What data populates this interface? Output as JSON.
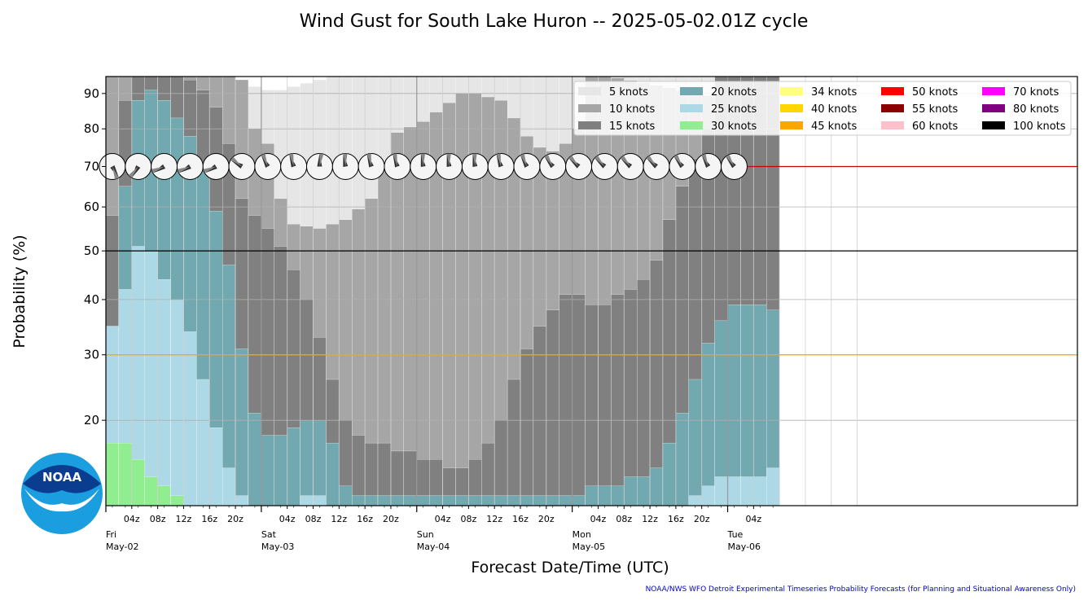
{
  "chart_data": {
    "type": "bar",
    "title": "Wind Gust for South Lake Huron -- 2025-05-02.01Z cycle",
    "xlabel": "Forecast Date/Time (UTC)",
    "ylabel": "Probability (%)",
    "y_scale": "sqrt",
    "ylim": [
      10,
      95
    ],
    "yticks": [
      20,
      30,
      40,
      50,
      60,
      70,
      80,
      90
    ],
    "grid": true,
    "legend_placement": "top-right",
    "x_start": "2025-05-02T01:00Z",
    "x_end": "2025-05-06T06:00Z",
    "x_step_hours": 2,
    "hour_tick_labels": [
      "04z",
      "08z",
      "12z",
      "16z",
      "20z"
    ],
    "day_labels": [
      {
        "dow": "Fri",
        "date": "May-02"
      },
      {
        "dow": "Sat",
        "date": "May-03"
      },
      {
        "dow": "Sun",
        "date": "May-04"
      },
      {
        "dow": "Mon",
        "date": "May-05"
      },
      {
        "dow": "Tue",
        "date": "May-06"
      }
    ],
    "last_hour_tick_label": "04z",
    "reference_lines": [
      {
        "value": 70,
        "color": "#cc0000"
      },
      {
        "value": 50,
        "color": "#000000"
      },
      {
        "value": 30,
        "color": "#ffa500"
      }
    ],
    "series": [
      {
        "name": "5 knots",
        "color": "#e6e6e6"
      },
      {
        "name": "10 knots",
        "color": "#a6a6a6"
      },
      {
        "name": "15 knots",
        "color": "#808080"
      },
      {
        "name": "20 knots",
        "color": "#72a8b0"
      },
      {
        "name": "25 knots",
        "color": "#add8e6"
      },
      {
        "name": "30 knots",
        "color": "#90ee90"
      },
      {
        "name": "34 knots",
        "color": "#ffff80"
      },
      {
        "name": "40 knots",
        "color": "#ffd700"
      },
      {
        "name": "45 knots",
        "color": "#ffa500"
      },
      {
        "name": "50 knots",
        "color": "#ff0000"
      },
      {
        "name": "55 knots",
        "color": "#8b0000"
      },
      {
        "name": "60 knots",
        "color": "#ffc0cb"
      },
      {
        "name": "70 knots",
        "color": "#ff00ff"
      },
      {
        "name": "80 knots",
        "color": "#800080"
      },
      {
        "name": "100 knots",
        "color": "#000000"
      }
    ],
    "anchors": {
      "10 knots": [
        [
          1,
          96
        ],
        [
          13,
          96
        ],
        [
          19,
          96
        ],
        [
          21,
          96
        ],
        [
          23,
          80
        ],
        [
          25,
          76
        ],
        [
          27,
          62
        ],
        [
          29,
          56
        ],
        [
          33,
          55
        ],
        [
          37,
          57
        ],
        [
          41,
          62
        ],
        [
          43,
          70
        ],
        [
          45,
          79
        ],
        [
          49,
          82
        ],
        [
          55,
          90
        ],
        [
          57,
          90
        ],
        [
          61,
          88
        ],
        [
          63,
          83
        ],
        [
          65,
          78
        ],
        [
          67,
          75
        ],
        [
          69,
          74
        ],
        [
          71,
          76
        ],
        [
          73,
          80
        ],
        [
          75,
          96
        ],
        [
          119,
          80
        ],
        [
          121,
          76
        ],
        [
          123,
          72
        ],
        [
          125,
          70
        ],
        [
          127,
          66
        ],
        [
          129,
          62
        ],
        [
          131,
          52
        ],
        [
          133,
          47
        ]
      ],
      "15 knots": [
        [
          1,
          58
        ],
        [
          3,
          88
        ],
        [
          5,
          96
        ],
        [
          7,
          96
        ],
        [
          9,
          96
        ],
        [
          11,
          96
        ],
        [
          13,
          94
        ],
        [
          15,
          91
        ],
        [
          17,
          86
        ],
        [
          19,
          76
        ],
        [
          21,
          62
        ],
        [
          23,
          58
        ],
        [
          25,
          55
        ],
        [
          27,
          51
        ],
        [
          29,
          46
        ],
        [
          31,
          40
        ],
        [
          33,
          33
        ],
        [
          35,
          26
        ],
        [
          37,
          20
        ],
        [
          39,
          18
        ],
        [
          41,
          17
        ],
        [
          43,
          17
        ],
        [
          45,
          16
        ],
        [
          47,
          16
        ],
        [
          49,
          15
        ],
        [
          51,
          15
        ],
        [
          53,
          14
        ],
        [
          55,
          14
        ],
        [
          57,
          15
        ],
        [
          59,
          17
        ],
        [
          61,
          20
        ],
        [
          63,
          26
        ],
        [
          65,
          31
        ],
        [
          67,
          35
        ],
        [
          69,
          38
        ],
        [
          71,
          41
        ],
        [
          73,
          41
        ],
        [
          75,
          39
        ],
        [
          77,
          39
        ],
        [
          79,
          41
        ],
        [
          81,
          42
        ],
        [
          83,
          44
        ],
        [
          85,
          48
        ],
        [
          87,
          57
        ],
        [
          89,
          65
        ],
        [
          91,
          72
        ],
        [
          93,
          80
        ],
        [
          95,
          96
        ],
        [
          109,
          96
        ],
        [
          111,
          84
        ],
        [
          113,
          73
        ],
        [
          115,
          70
        ],
        [
          117,
          66
        ],
        [
          119,
          63
        ],
        [
          121,
          64
        ],
        [
          123,
          66
        ],
        [
          125,
          68
        ],
        [
          127,
          65
        ],
        [
          129,
          60
        ],
        [
          131,
          55
        ],
        [
          133,
          51
        ],
        [
          135,
          49
        ],
        [
          137,
          44
        ],
        [
          139,
          41
        ],
        [
          141,
          40
        ],
        [
          143,
          36
        ],
        [
          145,
          31
        ],
        [
          147,
          27
        ],
        [
          149,
          21
        ],
        [
          151,
          17
        ],
        [
          153,
          14
        ]
      ],
      "20 knots": [
        [
          1,
          35
        ],
        [
          3,
          65
        ],
        [
          5,
          88
        ],
        [
          7,
          91
        ],
        [
          9,
          88
        ],
        [
          11,
          83
        ],
        [
          13,
          78
        ],
        [
          15,
          70
        ],
        [
          17,
          59
        ],
        [
          19,
          47
        ],
        [
          21,
          31
        ],
        [
          23,
          21
        ],
        [
          25,
          18
        ],
        [
          27,
          18
        ],
        [
          29,
          19
        ],
        [
          31,
          20
        ],
        [
          33,
          20
        ],
        [
          35,
          17
        ],
        [
          37,
          12
        ],
        [
          39,
          11
        ],
        [
          41,
          11
        ],
        [
          63,
          11
        ],
        [
          65,
          11
        ],
        [
          67,
          11
        ],
        [
          69,
          11
        ],
        [
          71,
          11
        ],
        [
          73,
          11
        ],
        [
          75,
          12
        ],
        [
          77,
          12
        ],
        [
          79,
          12
        ],
        [
          81,
          13
        ],
        [
          83,
          13
        ],
        [
          85,
          14
        ],
        [
          87,
          17
        ],
        [
          89,
          21
        ],
        [
          91,
          26
        ],
        [
          93,
          32
        ],
        [
          95,
          36
        ],
        [
          97,
          39
        ],
        [
          99,
          39
        ],
        [
          101,
          39
        ],
        [
          103,
          38
        ],
        [
          105,
          38
        ],
        [
          107,
          39
        ],
        [
          109,
          38
        ],
        [
          111,
          37
        ],
        [
          113,
          35
        ],
        [
          115,
          34
        ],
        [
          117,
          34
        ],
        [
          119,
          34
        ],
        [
          121,
          34
        ],
        [
          123,
          33
        ],
        [
          125,
          32
        ],
        [
          127,
          32
        ],
        [
          129,
          31
        ],
        [
          131,
          32
        ],
        [
          133,
          33
        ],
        [
          135,
          31
        ],
        [
          137,
          28
        ],
        [
          139,
          26
        ],
        [
          141,
          24
        ],
        [
          143,
          21
        ],
        [
          145,
          17
        ],
        [
          147,
          14
        ],
        [
          149,
          12
        ],
        [
          151,
          11
        ],
        [
          153,
          10
        ]
      ],
      "25 knots": [
        [
          1,
          35
        ],
        [
          3,
          42
        ],
        [
          5,
          51
        ],
        [
          7,
          50
        ],
        [
          9,
          44
        ],
        [
          11,
          40
        ],
        [
          13,
          34
        ],
        [
          15,
          26
        ],
        [
          17,
          19
        ],
        [
          19,
          14
        ],
        [
          21,
          11
        ],
        [
          23,
          10
        ],
        [
          29,
          10
        ],
        [
          31,
          11
        ],
        [
          33,
          11
        ],
        [
          35,
          10
        ],
        [
          89,
          10
        ],
        [
          91,
          11
        ],
        [
          93,
          12
        ],
        [
          95,
          13
        ],
        [
          97,
          13
        ],
        [
          99,
          13
        ],
        [
          101,
          13
        ],
        [
          103,
          14
        ],
        [
          105,
          14
        ],
        [
          107,
          14
        ],
        [
          109,
          14
        ],
        [
          111,
          15
        ],
        [
          113,
          15
        ],
        [
          115,
          16
        ],
        [
          117,
          17
        ],
        [
          119,
          17
        ],
        [
          121,
          16
        ],
        [
          123,
          15
        ],
        [
          125,
          15
        ],
        [
          127,
          14
        ],
        [
          129,
          13
        ],
        [
          131,
          13
        ],
        [
          133,
          12
        ],
        [
          135,
          12
        ],
        [
          137,
          11
        ],
        [
          139,
          11
        ],
        [
          141,
          10
        ]
      ],
      "30 knots": [
        [
          1,
          17
        ],
        [
          3,
          17
        ],
        [
          5,
          15
        ],
        [
          7,
          13
        ],
        [
          9,
          12
        ],
        [
          11,
          11
        ],
        [
          13,
          10
        ],
        [
          113,
          10
        ],
        [
          115,
          10.3
        ],
        [
          117,
          10.5
        ],
        [
          119,
          10.5
        ],
        [
          121,
          10.3
        ],
        [
          123,
          10
        ]
      ]
    },
    "wind_dir_deg": [
      150,
      210,
      240,
      240,
      240,
      300,
      330,
      340,
      360,
      350,
      340,
      340,
      350,
      350,
      350,
      340,
      330,
      320,
      310,
      310,
      310,
      310,
      320,
      330,
      320
    ]
  },
  "credit": "NOAA/NWS WFO Detroit Experimental Timeseries Probability Forecasts (for Planning and Situational Awareness Only)",
  "logo": {
    "text": "NOAA"
  }
}
